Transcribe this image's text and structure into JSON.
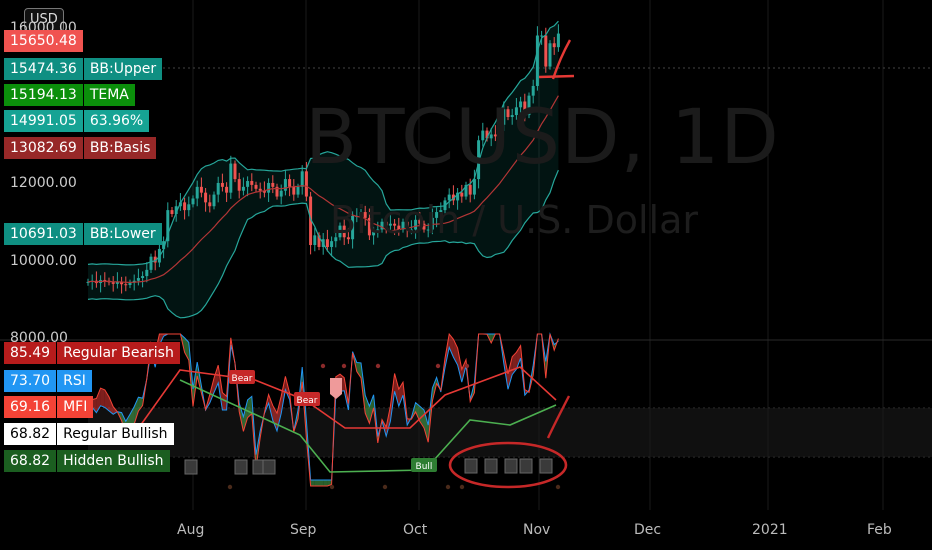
{
  "header": {
    "currency": "USD"
  },
  "watermark": {
    "symbol": "BTCUSD, 1D",
    "description": "Bitcoin / U.S. Dollar"
  },
  "price_labels": [
    {
      "value": "15650.48",
      "name": "",
      "color": "#f05350",
      "top": 30
    },
    {
      "value": "15474.36",
      "name": "BB:Upper",
      "color": "#0f8f82",
      "top": 58
    },
    {
      "value": "15194.13",
      "name": "TEMA",
      "color": "#0b8f0b",
      "top": 84
    },
    {
      "value": "14991.05",
      "name": "63.96%",
      "color": "#16a394",
      "top": 110
    },
    {
      "value": "13082.69",
      "name": "BB:Basis",
      "color": "#972828",
      "top": 137
    },
    {
      "value": "10691.03",
      "name": "BB:Lower",
      "color": "#0f8f82",
      "top": 223
    }
  ],
  "price_axis": [
    {
      "text": "16000.00",
      "top": 20
    },
    {
      "text": "12000.00",
      "top": 175
    },
    {
      "text": "10000.00",
      "top": 253
    },
    {
      "text": "8000.00",
      "top": 330
    }
  ],
  "osc_labels": [
    {
      "value": "85.49",
      "name": "Regular Bearish",
      "color": "#b71c1c",
      "text": "#fff",
      "top": 342
    },
    {
      "value": "73.70",
      "name": "RSI",
      "color": "#2196f3",
      "text": "#fff",
      "top": 370
    },
    {
      "value": "69.16",
      "name": "MFI",
      "color": "#f44336",
      "text": "#fff",
      "top": 396
    },
    {
      "value": "68.82",
      "name": "Regular Bullish",
      "color": "#ffffff",
      "text": "#000",
      "top": 423
    },
    {
      "value": "68.82",
      "name": "Hidden Bullish",
      "color": "#1b5e20",
      "text": "#fff",
      "top": 450
    }
  ],
  "x_axis": [
    {
      "text": "Aug",
      "x": 193
    },
    {
      "text": "Sep",
      "x": 306
    },
    {
      "text": "Oct",
      "x": 419
    },
    {
      "text": "Nov",
      "x": 539
    },
    {
      "text": "Dec",
      "x": 650
    },
    {
      "text": "2021",
      "x": 768
    },
    {
      "text": "Feb",
      "x": 883
    }
  ],
  "signals": [
    {
      "text": "Bear",
      "x": 241,
      "y": 379,
      "color": "#c62828"
    },
    {
      "text": "Bear",
      "x": 306,
      "y": 401,
      "color": "#c62828"
    },
    {
      "text": "Bull",
      "x": 423,
      "y": 467,
      "color": "#2e7d32"
    }
  ],
  "chart_data": {
    "type": "candlestick",
    "title": "BTCUSD, 1D",
    "subtitle": "Bitcoin / U.S. Dollar",
    "ylim": [
      8000,
      16500
    ],
    "x_range": [
      "2020-07-08",
      "2020-11-10"
    ],
    "closes": [
      9250,
      9280,
      9220,
      9300,
      9280,
      9240,
      9200,
      9260,
      9190,
      9170,
      9230,
      9280,
      9350,
      9400,
      9560,
      9900,
      9750,
      10100,
      10300,
      11100,
      11000,
      11200,
      11300,
      11100,
      11250,
      11400,
      11700,
      11550,
      11300,
      11200,
      11500,
      11800,
      11700,
      11550,
      12300,
      11900,
      11600,
      11700,
      11850,
      11750,
      11650,
      11600,
      11550,
      11800,
      11700,
      11450,
      11600,
      11900,
      11700,
      11500,
      11700,
      12100,
      11450,
      10200,
      10450,
      10150,
      10350,
      10150,
      10300,
      10400,
      10700,
      10400,
      10350,
      10950,
      10950,
      11050,
      10900,
      10450,
      10550,
      10600,
      10800,
      10700,
      10750,
      10700,
      10600,
      10800,
      10600,
      10600,
      10850,
      10750,
      10600,
      10600,
      10900,
      11050,
      11100,
      11350,
      11500,
      11350,
      11550,
      11450,
      11750,
      11500,
      11900,
      12900,
      13150,
      12950,
      13050,
      13000,
      13300,
      13700,
      13500,
      13550,
      13750,
      13900,
      13550,
      14050,
      14300,
      15600,
      15600,
      14800,
      15400,
      15300,
      15650
    ]
  }
}
